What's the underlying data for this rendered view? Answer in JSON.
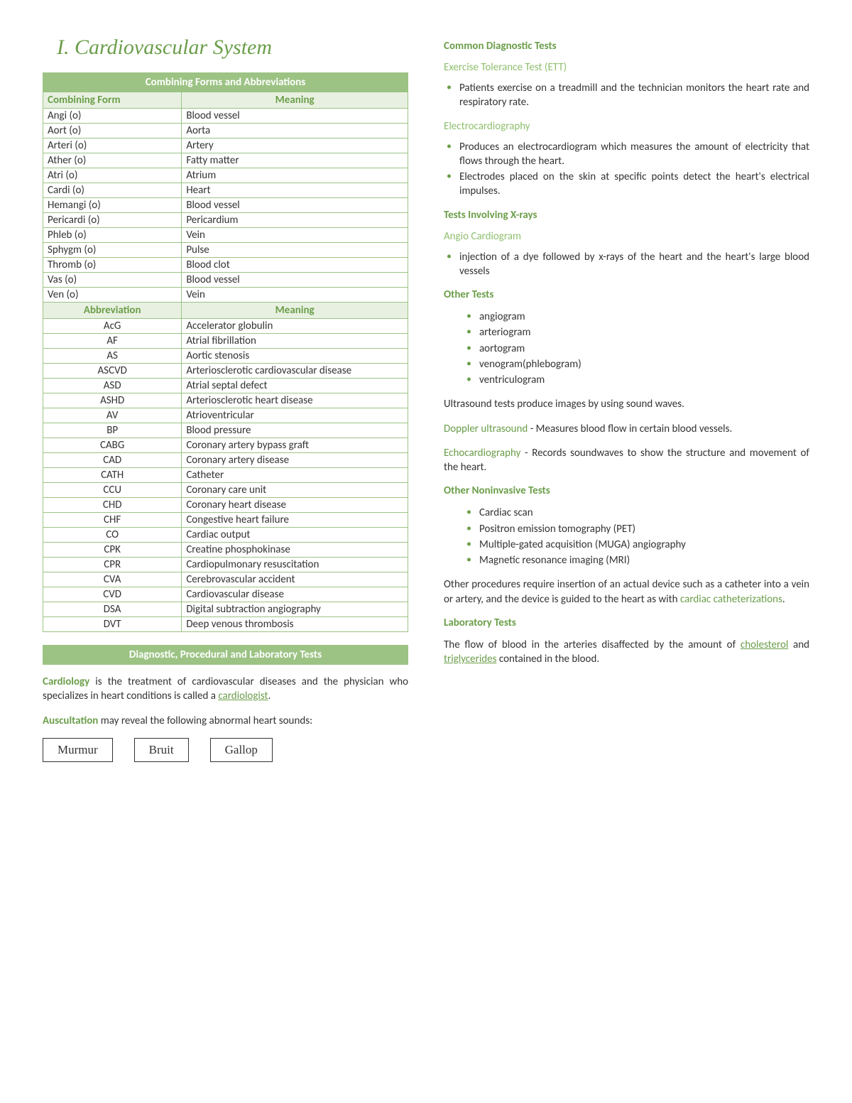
{
  "heading": "I.    Cardiovascular System",
  "table": {
    "banner": "Combining Forms and Abbreviations",
    "header1": {
      "c1": "Combining Form",
      "c2": "Meaning"
    },
    "forms": [
      {
        "c1": "Angi (o)",
        "c2": "Blood vessel"
      },
      {
        "c1": "Aort (o)",
        "c2": "Aorta"
      },
      {
        "c1": "Arteri (o)",
        "c2": "Artery"
      },
      {
        "c1": "Ather (o)",
        "c2": "Fatty matter"
      },
      {
        "c1": "Atri (o)",
        "c2": "Atrium"
      },
      {
        "c1": "Cardi (o)",
        "c2": "Heart"
      },
      {
        "c1": "Hemangi (o)",
        "c2": "Blood vessel"
      },
      {
        "c1": "Pericardi (o)",
        "c2": "Pericardium"
      },
      {
        "c1": "Phleb (o)",
        "c2": "Vein"
      },
      {
        "c1": "Sphygm (o)",
        "c2": "Pulse"
      },
      {
        "c1": "Thromb (o)",
        "c2": "Blood clot"
      },
      {
        "c1": "Vas (o)",
        "c2": "Blood vessel"
      },
      {
        "c1": "Ven (o)",
        "c2": "Vein"
      }
    ],
    "header2": {
      "c1": "Abbreviation",
      "c2": "Meaning"
    },
    "abbrs": [
      {
        "c1": "AcG",
        "c2": "Accelerator globulin"
      },
      {
        "c1": "AF",
        "c2": "Atrial fibrillation"
      },
      {
        "c1": "AS",
        "c2": "Aortic stenosis"
      },
      {
        "c1": "ASCVD",
        "c2": "Arteriosclerotic cardiovascular disease"
      },
      {
        "c1": "ASD",
        "c2": "Atrial septal defect"
      },
      {
        "c1": "ASHD",
        "c2": "Arteriosclerotic heart disease"
      },
      {
        "c1": "AV",
        "c2": "Atrioventricular"
      },
      {
        "c1": "BP",
        "c2": "Blood pressure"
      },
      {
        "c1": "CABG",
        "c2": "Coronary artery bypass graft"
      },
      {
        "c1": "CAD",
        "c2": "Coronary artery disease"
      },
      {
        "c1": "CATH",
        "c2": "Catheter"
      },
      {
        "c1": "CCU",
        "c2": "Coronary care unit"
      },
      {
        "c1": "CHD",
        "c2": "Coronary heart disease"
      },
      {
        "c1": "CHF",
        "c2": "Congestive heart failure"
      },
      {
        "c1": "CO",
        "c2": "Cardiac output"
      },
      {
        "c1": "CPK",
        "c2": "Creatine phosphokinase"
      },
      {
        "c1": "CPR",
        "c2": "Cardiopulmonary resuscitation"
      },
      {
        "c1": "CVA",
        "c2": "Cerebrovascular accident"
      },
      {
        "c1": "CVD",
        "c2": "Cardiovascular disease"
      },
      {
        "c1": "DSA",
        "c2": "Digital subtraction angiography"
      },
      {
        "c1": "DVT",
        "c2": "Deep venous thrombosis"
      }
    ]
  },
  "sectionBanner": "Diagnostic, Procedural and Laboratory Tests",
  "para1": {
    "t1": "Cardiology",
    "t2": " is the treatment of cardiovascular diseases and the physician who specializes in heart conditions is called a ",
    "t3": "cardiologist",
    "t4": "."
  },
  "para2": {
    "t1": "Auscultation",
    "t2": " may reveal the following abnormal heart sounds:"
  },
  "sounds": [
    "Murmur",
    "Bruit",
    "Gallop"
  ],
  "r": {
    "h1": "Common Diagnostic Tests",
    "ett": {
      "h": "Exercise Tolerance Test (ETT)",
      "b1": "Patients exercise on a treadmill and the technician monitors the heart rate and respiratory rate."
    },
    "ecg": {
      "h": "Electrocardiography",
      "b1": "Produces an electrocardiogram which measures the amount of electricity that flows through the heart.",
      "b2": "Electrodes placed on the skin at specific points detect the heart's electrical impulses."
    },
    "xray": {
      "h": "Tests Involving X-rays",
      "sub": "Angio Cardiogram",
      "b1": "injection of a dye followed by x-rays of the heart and the heart's large blood vessels"
    },
    "other": {
      "h": "Other Tests",
      "items": [
        "angiogram",
        "arteriogram",
        "aortogram",
        "venogram(phlebogram)",
        "ventriculogram"
      ]
    },
    "ultra": "Ultrasound tests produce images by using sound waves.",
    "doppler": {
      "t1": "Doppler ultrasound",
      "t2": " - Measures blood flow in certain blood vessels."
    },
    "echo": {
      "t1": "Echocardiography",
      "t2": " - Records soundwaves to show the structure and movement of the heart."
    },
    "noninv": {
      "h": "Other Noninvasive Tests",
      "items": [
        "Cardiac scan",
        "Positron emission tomography (PET)",
        "Multiple-gated acquisition (MUGA) angiography",
        "Magnetic resonance imaging (MRI)"
      ]
    },
    "cath": {
      "t1": "Other procedures require insertion of an actual device such as a catheter into a vein or artery, and the device is guided to the heart as with ",
      "t2": "cardiac catheterizations",
      "t3": "."
    },
    "lab": {
      "h": "Laboratory Tests",
      "t1": "The flow of blood in the arteries disaffected by the amount of ",
      "t2": "cholesterol",
      "t3": " and ",
      "t4": "triglycerides",
      "t5": " contained in the blood."
    }
  }
}
